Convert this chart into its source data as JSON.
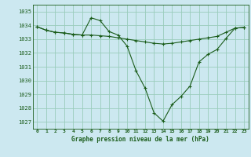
{
  "xlabel": "Graphe pression niveau de la mer (hPa)",
  "bg_color": "#cce8f0",
  "grid_color": "#99ccbb",
  "line_color": "#1a5c1a",
  "xlim": [
    -0.5,
    23.5
  ],
  "ylim": [
    1026.5,
    1035.5
  ],
  "yticks": [
    1027,
    1028,
    1029,
    1030,
    1031,
    1032,
    1033,
    1034,
    1035
  ],
  "xticks": [
    0,
    1,
    2,
    3,
    4,
    5,
    6,
    7,
    8,
    9,
    10,
    11,
    12,
    13,
    14,
    15,
    16,
    17,
    18,
    19,
    20,
    21,
    22,
    23
  ],
  "series1": {
    "x": [
      0,
      1,
      2,
      3,
      4,
      5,
      6,
      7,
      8,
      9,
      10,
      11,
      12,
      13,
      14,
      15,
      16,
      17,
      18,
      19,
      20,
      21,
      22,
      23
    ],
    "y": [
      1033.9,
      1033.65,
      1033.5,
      1033.45,
      1033.35,
      1033.3,
      1033.3,
      1033.25,
      1033.2,
      1033.1,
      1033.0,
      1032.9,
      1032.8,
      1032.7,
      1032.65,
      1032.7,
      1032.8,
      1032.9,
      1033.0,
      1033.1,
      1033.2,
      1033.5,
      1033.8,
      1033.85
    ]
  },
  "series2": {
    "x": [
      0,
      1,
      2,
      3,
      4,
      5,
      6,
      7,
      8,
      9,
      10,
      11,
      12,
      13,
      14,
      15,
      16,
      17,
      18,
      19,
      20,
      21,
      22,
      23
    ],
    "y": [
      1033.9,
      1033.65,
      1033.5,
      1033.45,
      1033.35,
      1033.3,
      1034.55,
      1034.35,
      1033.55,
      1033.3,
      1032.5,
      1030.7,
      1029.45,
      1027.65,
      1027.05,
      1028.25,
      1028.85,
      1029.6,
      1031.35,
      1031.9,
      1032.25,
      1033.05,
      1033.8,
      1033.85
    ]
  }
}
